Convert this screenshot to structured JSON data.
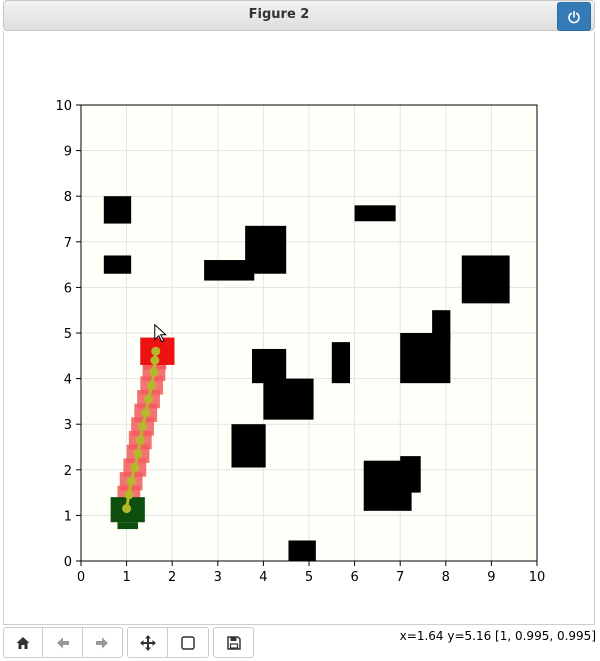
{
  "window": {
    "title": "Figure 2"
  },
  "status": {
    "coords": "x=1.64 y=5.16 [1, 0.995, 0.995]"
  },
  "toolbar": {
    "buttons": [
      {
        "icon": "home-icon"
      },
      {
        "icon": "back-arrow-icon"
      },
      {
        "icon": "forward-arrow-icon"
      },
      {
        "icon": "pan-move-icon"
      },
      {
        "icon": "zoom-rectangle-icon"
      },
      {
        "icon": "save-icon"
      }
    ]
  },
  "chart_data": {
    "type": "heatmap",
    "xlim": [
      0,
      10
    ],
    "ylim": [
      0,
      10
    ],
    "xticks": [
      "0",
      "1",
      "2",
      "3",
      "4",
      "5",
      "6",
      "7",
      "8",
      "9",
      "10"
    ],
    "yticks": [
      "0",
      "1",
      "2",
      "3",
      "4",
      "5",
      "6",
      "7",
      "8",
      "9",
      "10"
    ],
    "grid": true,
    "colors": {
      "background": "#fffffa",
      "obstacle": "#000000",
      "start": "#0d4d0d",
      "goal": "#ee1111",
      "explored": "#f25c5c",
      "path": "#b5b82a"
    },
    "obstacles": [
      [
        0.5,
        7.4,
        1.1,
        8.0
      ],
      [
        0.5,
        6.3,
        1.1,
        6.7
      ],
      [
        2.7,
        6.15,
        3.8,
        6.6
      ],
      [
        3.6,
        6.3,
        4.5,
        7.35
      ],
      [
        6.0,
        7.45,
        6.9,
        7.8
      ],
      [
        8.35,
        5.65,
        9.4,
        6.7
      ],
      [
        7.7,
        4.8,
        8.1,
        5.5
      ],
      [
        7.0,
        3.9,
        8.1,
        5.0
      ],
      [
        5.5,
        3.9,
        5.9,
        4.8
      ],
      [
        3.75,
        3.9,
        4.5,
        4.65
      ],
      [
        4.0,
        3.1,
        5.1,
        4.0
      ],
      [
        3.3,
        2.05,
        4.05,
        3.0
      ],
      [
        6.2,
        1.1,
        7.25,
        2.2
      ],
      [
        7.0,
        1.5,
        7.45,
        2.3
      ],
      [
        4.55,
        0.0,
        5.15,
        0.45
      ]
    ],
    "start_cell": [
      1.0,
      1.0
    ],
    "goal_cell": [
      1.6,
      4.6
    ],
    "path": [
      [
        1.0,
        1.15
      ],
      [
        1.05,
        1.45
      ],
      [
        1.1,
        1.75
      ],
      [
        1.18,
        2.05
      ],
      [
        1.25,
        2.35
      ],
      [
        1.3,
        2.65
      ],
      [
        1.35,
        2.95
      ],
      [
        1.42,
        3.25
      ],
      [
        1.48,
        3.55
      ],
      [
        1.55,
        3.85
      ],
      [
        1.6,
        4.15
      ],
      [
        1.62,
        4.4
      ],
      [
        1.64,
        4.6
      ]
    ]
  }
}
